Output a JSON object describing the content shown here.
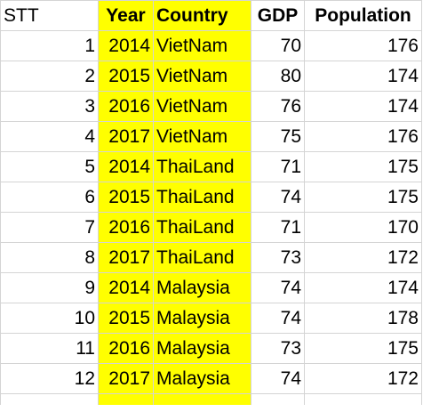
{
  "headers": {
    "stt": "STT",
    "year": "Year",
    "country": "Country",
    "gdp": "GDP",
    "population": "Population"
  },
  "rows": [
    {
      "stt": "1",
      "year": "2014",
      "country": "VietNam",
      "gdp": "70",
      "population": "176"
    },
    {
      "stt": "2",
      "year": "2015",
      "country": "VietNam",
      "gdp": "80",
      "population": "174"
    },
    {
      "stt": "3",
      "year": "2016",
      "country": "VietNam",
      "gdp": "76",
      "population": "174"
    },
    {
      "stt": "4",
      "year": "2017",
      "country": "VietNam",
      "gdp": "75",
      "population": "176"
    },
    {
      "stt": "5",
      "year": "2014",
      "country": "ThaiLand",
      "gdp": "71",
      "population": "175"
    },
    {
      "stt": "6",
      "year": "2015",
      "country": "ThaiLand",
      "gdp": "74",
      "population": "175"
    },
    {
      "stt": "7",
      "year": "2016",
      "country": "ThaiLand",
      "gdp": "71",
      "population": "170"
    },
    {
      "stt": "8",
      "year": "2017",
      "country": "ThaiLand",
      "gdp": "73",
      "population": "172"
    },
    {
      "stt": "9",
      "year": "2014",
      "country": "Malaysia",
      "gdp": "74",
      "population": "174"
    },
    {
      "stt": "10",
      "year": "2015",
      "country": "Malaysia",
      "gdp": "74",
      "population": "178"
    },
    {
      "stt": "11",
      "year": "2016",
      "country": "Malaysia",
      "gdp": "73",
      "population": "175"
    },
    {
      "stt": "12",
      "year": "2017",
      "country": "Malaysia",
      "gdp": "74",
      "population": "172"
    }
  ],
  "colors": {
    "highlight": "#ffff00",
    "gridline": "#d4d4d4"
  }
}
